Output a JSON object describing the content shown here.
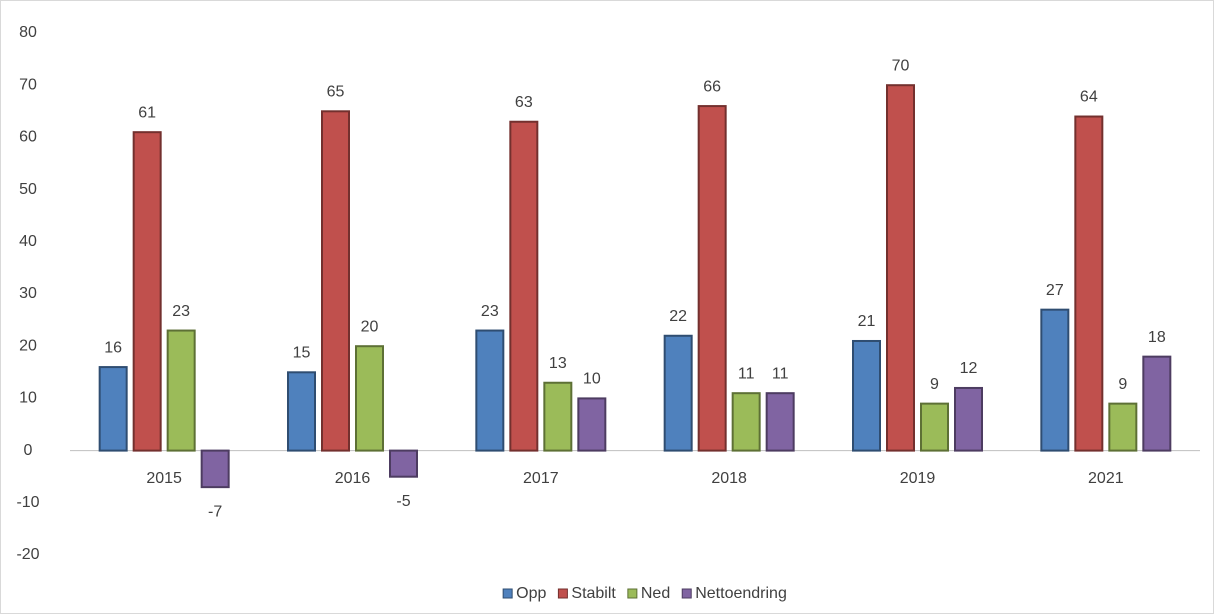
{
  "chart_data": {
    "type": "bar",
    "categories": [
      "2015",
      "2016",
      "2017",
      "2018",
      "2019",
      "2021"
    ],
    "series": [
      {
        "name": "Opp",
        "color": "#4f81bd",
        "values": [
          16,
          15,
          23,
          22,
          21,
          27
        ]
      },
      {
        "name": "Stabilt",
        "color": "#c0504d",
        "values": [
          61,
          65,
          63,
          66,
          70,
          64
        ]
      },
      {
        "name": "Ned",
        "color": "#9bbb59",
        "values": [
          23,
          20,
          13,
          11,
          9,
          9
        ]
      },
      {
        "name": "Nettoendring",
        "color": "#8064a2",
        "values": [
          -7,
          -5,
          10,
          11,
          12,
          18
        ]
      }
    ],
    "ylim": [
      -20,
      80
    ],
    "yticks": [
      -20,
      -10,
      0,
      10,
      20,
      30,
      40,
      50,
      60,
      70,
      80
    ],
    "grid": false,
    "legend": "bottom"
  }
}
